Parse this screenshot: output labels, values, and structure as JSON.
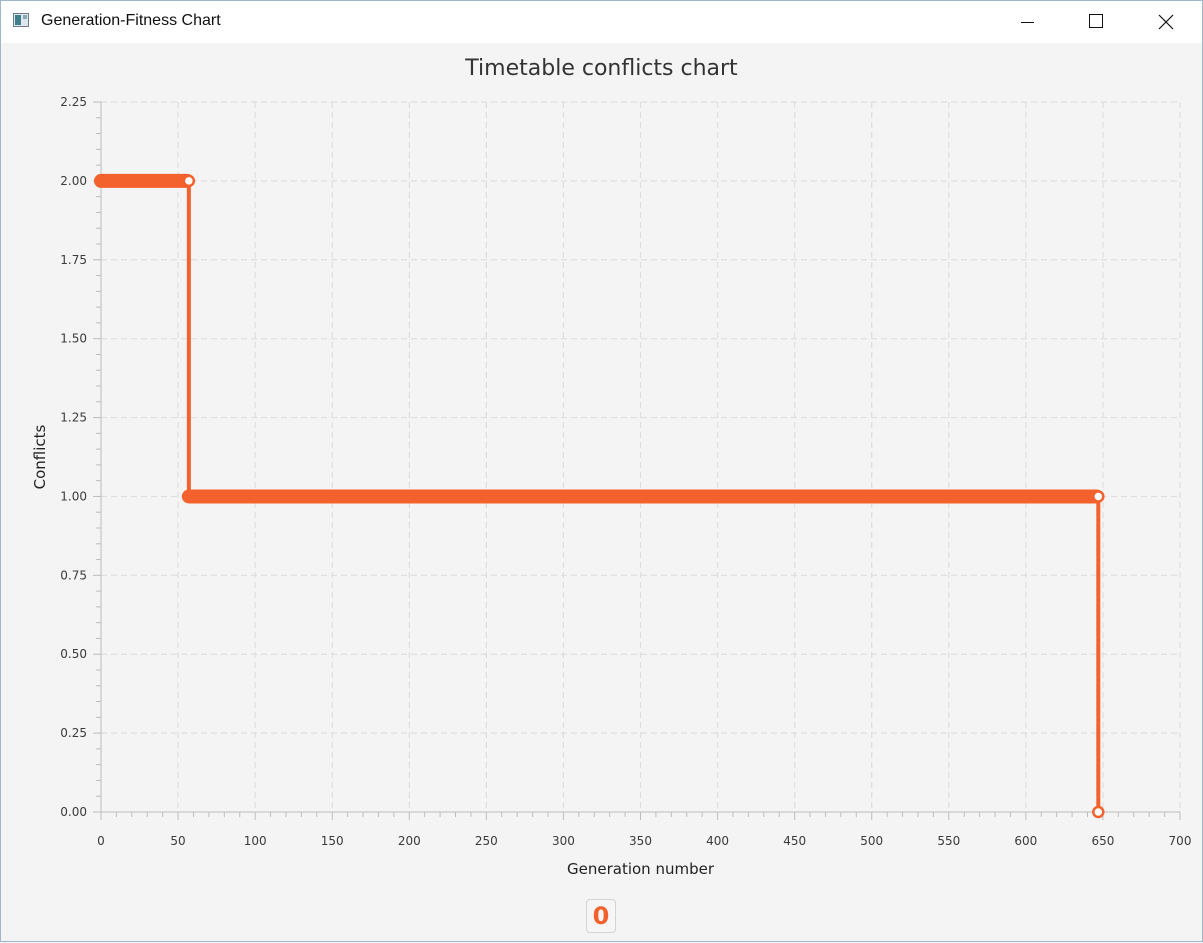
{
  "window": {
    "title": "Generation-Fitness Chart",
    "icon": "app-window-icon",
    "controls": [
      "minimize-icon",
      "maximize-icon",
      "close-icon"
    ]
  },
  "chart_data": {
    "type": "line",
    "title": "Timetable conflicts chart",
    "xlabel": "Generation number",
    "ylabel": "Conflicts",
    "xlim": [
      0,
      700
    ],
    "ylim": [
      0,
      2.25
    ],
    "xticks": [
      "0",
      "50",
      "100",
      "150",
      "200",
      "250",
      "300",
      "350",
      "400",
      "450",
      "500",
      "550",
      "600",
      "650",
      "700"
    ],
    "yticks": [
      "0.00",
      "0.25",
      "0.50",
      "0.75",
      "1.00",
      "1.25",
      "1.50",
      "1.75",
      "2.00",
      "2.25"
    ],
    "grid": true,
    "series": [
      {
        "name": "",
        "color": "#f3622d",
        "points": [
          {
            "x": 0,
            "y": 2
          },
          {
            "x": 57,
            "y": 2
          },
          {
            "x": 57,
            "y": 1
          },
          {
            "x": 647,
            "y": 1
          },
          {
            "x": 647,
            "y": 0
          }
        ],
        "markers": [
          {
            "x": 57,
            "y": 2
          },
          {
            "x": 647,
            "y": 1
          },
          {
            "x": 647,
            "y": 0
          }
        ],
        "dense_segments": [
          {
            "x_start": 0,
            "x_end": 56,
            "y": 2
          },
          {
            "x_start": 57,
            "x_end": 646,
            "y": 1
          }
        ]
      }
    ],
    "legend": {
      "placement": "bottom-center",
      "symbol": "0"
    }
  }
}
